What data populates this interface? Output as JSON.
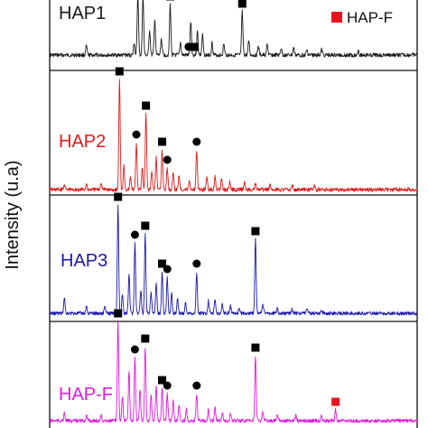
{
  "chart_data": {
    "type": "line",
    "title": "",
    "xlabel": "",
    "ylabel": "Intensity (u.a)",
    "xlim": [
      20,
      70
    ],
    "grid": false,
    "legend": {
      "position": "top-right",
      "entries": [
        {
          "label": "HAP-F",
          "marker": "square",
          "color": "#e8141c"
        }
      ]
    },
    "marker_kinds": {
      "square": "square",
      "circle": "circle"
    },
    "series": [
      {
        "name": "HAP1",
        "color": "#1a1a1a",
        "baseline": 61,
        "noise": 2.2,
        "peaks": [
          {
            "x": 25.0,
            "h": 10
          },
          {
            "x": 31.5,
            "h": 14
          },
          {
            "x": 32.0,
            "h": 68
          },
          {
            "x": 32.7,
            "h": 66
          },
          {
            "x": 33.6,
            "h": 28
          },
          {
            "x": 34.3,
            "h": 40
          },
          {
            "x": 35.2,
            "h": 18
          },
          {
            "x": 36.4,
            "h": 56
          },
          {
            "x": 37.8,
            "h": 14
          },
          {
            "x": 39.2,
            "h": 38
          },
          {
            "x": 40.1,
            "h": 26
          },
          {
            "x": 40.8,
            "h": 22
          },
          {
            "x": 42.1,
            "h": 14
          },
          {
            "x": 43.7,
            "h": 12
          },
          {
            "x": 46.2,
            "h": 48
          },
          {
            "x": 47.1,
            "h": 16
          },
          {
            "x": 48.4,
            "h": 10
          },
          {
            "x": 49.6,
            "h": 12
          },
          {
            "x": 51.5,
            "h": 8
          },
          {
            "x": 53.2,
            "h": 8
          },
          {
            "x": 55.0,
            "h": 6
          },
          {
            "x": 57.0,
            "h": 6
          },
          {
            "x": 62.0,
            "h": 6
          }
        ],
        "markers": [
          {
            "x": 36.4,
            "kind": "square"
          },
          {
            "x": 38.9,
            "kind": "circle"
          },
          {
            "x": 39.7,
            "kind": "square"
          },
          {
            "x": 46.2,
            "kind": "square"
          }
        ]
      },
      {
        "name": "HAP2",
        "color": "#e01a1a",
        "baseline": 210,
        "noise": 2.2,
        "peaks": [
          {
            "x": 22.0,
            "h": 6
          },
          {
            "x": 25.0,
            "h": 6
          },
          {
            "x": 27.0,
            "h": 8
          },
          {
            "x": 29.5,
            "h": 122
          },
          {
            "x": 30.1,
            "h": 26
          },
          {
            "x": 31.0,
            "h": 14
          },
          {
            "x": 31.8,
            "h": 52
          },
          {
            "x": 32.6,
            "h": 24
          },
          {
            "x": 33.1,
            "h": 84
          },
          {
            "x": 33.9,
            "h": 20
          },
          {
            "x": 34.5,
            "h": 36
          },
          {
            "x": 35.3,
            "h": 44
          },
          {
            "x": 36.0,
            "h": 24
          },
          {
            "x": 36.8,
            "h": 20
          },
          {
            "x": 37.6,
            "h": 16
          },
          {
            "x": 39.0,
            "h": 10
          },
          {
            "x": 40.0,
            "h": 44
          },
          {
            "x": 41.4,
            "h": 14
          },
          {
            "x": 42.5,
            "h": 16
          },
          {
            "x": 43.4,
            "h": 12
          },
          {
            "x": 44.5,
            "h": 8
          },
          {
            "x": 46.5,
            "h": 8
          },
          {
            "x": 48.0,
            "h": 6
          },
          {
            "x": 50.0,
            "h": 6
          },
          {
            "x": 53.0,
            "h": 5
          },
          {
            "x": 56.0,
            "h": 4
          }
        ],
        "markers": [
          {
            "x": 29.5,
            "kind": "square"
          },
          {
            "x": 31.8,
            "kind": "circle"
          },
          {
            "x": 33.1,
            "kind": "square"
          },
          {
            "x": 35.3,
            "kind": "square"
          },
          {
            "x": 36.0,
            "kind": "circle"
          },
          {
            "x": 40.0,
            "kind": "circle"
          }
        ]
      },
      {
        "name": "HAP3",
        "color": "#1a1aa8",
        "baseline": 347,
        "noise": 2.0,
        "peaks": [
          {
            "x": 22.0,
            "h": 18
          },
          {
            "x": 25.0,
            "h": 8
          },
          {
            "x": 27.5,
            "h": 8
          },
          {
            "x": 29.3,
            "h": 120
          },
          {
            "x": 29.9,
            "h": 22
          },
          {
            "x": 30.8,
            "h": 44
          },
          {
            "x": 31.6,
            "h": 78
          },
          {
            "x": 32.4,
            "h": 26
          },
          {
            "x": 33.0,
            "h": 88
          },
          {
            "x": 33.8,
            "h": 22
          },
          {
            "x": 34.5,
            "h": 32
          },
          {
            "x": 35.3,
            "h": 46
          },
          {
            "x": 36.0,
            "h": 40
          },
          {
            "x": 36.6,
            "h": 22
          },
          {
            "x": 37.4,
            "h": 16
          },
          {
            "x": 38.5,
            "h": 12
          },
          {
            "x": 40.0,
            "h": 46
          },
          {
            "x": 41.6,
            "h": 14
          },
          {
            "x": 42.5,
            "h": 16
          },
          {
            "x": 43.5,
            "h": 10
          },
          {
            "x": 44.6,
            "h": 8
          },
          {
            "x": 45.8,
            "h": 6
          },
          {
            "x": 48.0,
            "h": 82
          },
          {
            "x": 49.0,
            "h": 10
          },
          {
            "x": 51.0,
            "h": 6
          },
          {
            "x": 53.0,
            "h": 5
          },
          {
            "x": 55.0,
            "h": 5
          },
          {
            "x": 57.0,
            "h": 4
          }
        ],
        "markers": [
          {
            "x": 29.3,
            "kind": "square"
          },
          {
            "x": 31.6,
            "kind": "circle"
          },
          {
            "x": 33.0,
            "kind": "square"
          },
          {
            "x": 35.3,
            "kind": "square"
          },
          {
            "x": 36.0,
            "kind": "circle"
          },
          {
            "x": 40.0,
            "kind": "circle"
          },
          {
            "x": 48.0,
            "kind": "square"
          }
        ]
      },
      {
        "name": "HAP-F",
        "color": "#e018e0",
        "baseline": 466,
        "noise": 2.0,
        "peaks": [
          {
            "x": 22.0,
            "h": 8
          },
          {
            "x": 25.0,
            "h": 6
          },
          {
            "x": 27.0,
            "h": 6
          },
          {
            "x": 29.3,
            "h": 110
          },
          {
            "x": 29.9,
            "h": 28
          },
          {
            "x": 30.8,
            "h": 56
          },
          {
            "x": 31.6,
            "h": 70
          },
          {
            "x": 32.3,
            "h": 34
          },
          {
            "x": 33.0,
            "h": 82
          },
          {
            "x": 33.8,
            "h": 30
          },
          {
            "x": 34.5,
            "h": 40
          },
          {
            "x": 35.3,
            "h": 36
          },
          {
            "x": 36.0,
            "h": 30
          },
          {
            "x": 36.8,
            "h": 22
          },
          {
            "x": 37.6,
            "h": 18
          },
          {
            "x": 38.6,
            "h": 14
          },
          {
            "x": 40.0,
            "h": 30
          },
          {
            "x": 41.6,
            "h": 12
          },
          {
            "x": 42.5,
            "h": 14
          },
          {
            "x": 43.5,
            "h": 10
          },
          {
            "x": 44.6,
            "h": 8
          },
          {
            "x": 48.0,
            "h": 72
          },
          {
            "x": 49.0,
            "h": 10
          },
          {
            "x": 51.0,
            "h": 6
          },
          {
            "x": 53.5,
            "h": 6
          },
          {
            "x": 57.0,
            "h": 5
          },
          {
            "x": 58.9,
            "h": 12
          }
        ],
        "markers": [
          {
            "x": 29.3,
            "kind": "square"
          },
          {
            "x": 31.6,
            "kind": "circle"
          },
          {
            "x": 33.0,
            "kind": "square"
          },
          {
            "x": 35.3,
            "kind": "square"
          },
          {
            "x": 36.0,
            "kind": "circle"
          },
          {
            "x": 40.0,
            "kind": "circle"
          },
          {
            "x": 48.0,
            "kind": "square"
          },
          {
            "x": 58.9,
            "kind": "square",
            "color": "#e8141c"
          }
        ]
      }
    ]
  }
}
